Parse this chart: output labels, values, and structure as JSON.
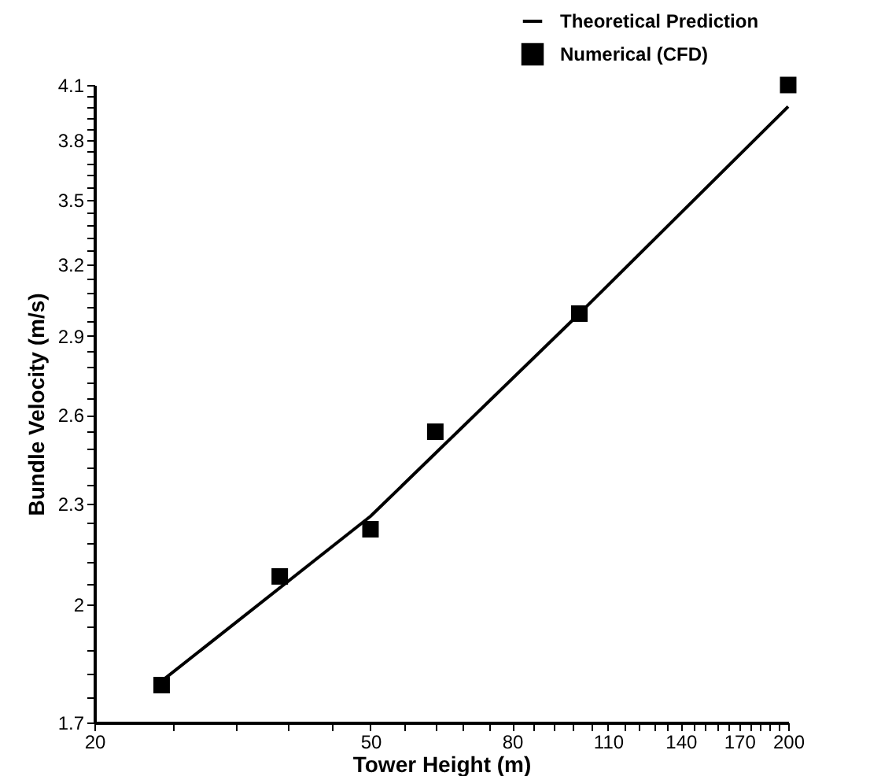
{
  "chart_data": {
    "type": "line",
    "xlabel": "Tower Height (m)",
    "ylabel": "Bundle Velocity (m/s)",
    "log": "xy",
    "legend": "top right",
    "grid": false,
    "xlim": [
      20,
      200
    ],
    "ylim": [
      1.7,
      4.1
    ],
    "xticks": [
      20,
      {
        "value": 26,
        "label": null
      },
      {
        "value": 32,
        "label": null
      },
      {
        "value": 38,
        "label": null
      },
      {
        "value": 44,
        "label": null
      },
      50,
      {
        "value": 56,
        "label": null
      },
      {
        "value": 62,
        "label": null
      },
      {
        "value": 68,
        "label": null
      },
      {
        "value": 74,
        "label": null
      },
      80,
      {
        "value": 86,
        "label": null
      },
      {
        "value": 92,
        "label": null
      },
      {
        "value": 98,
        "label": null
      },
      {
        "value": 104,
        "label": null
      },
      110,
      {
        "value": 116,
        "label": null
      },
      {
        "value": 122,
        "label": null
      },
      {
        "value": 128,
        "label": null
      },
      {
        "value": 134,
        "label": null
      },
      140,
      {
        "value": 146,
        "label": null
      },
      {
        "value": 152,
        "label": null
      },
      {
        "value": 158,
        "label": null
      },
      {
        "value": 164,
        "label": null
      },
      170,
      {
        "value": 176,
        "label": null
      },
      {
        "value": 182,
        "label": null
      },
      {
        "value": 188,
        "label": null
      },
      {
        "value": 194,
        "label": null
      },
      200
    ],
    "yticks": [
      1.7,
      {
        "value": 1.76,
        "label": null
      },
      {
        "value": 1.82,
        "label": null
      },
      {
        "value": 1.88,
        "label": null
      },
      {
        "value": 1.94,
        "label": null
      },
      {
        "value": 2,
        "label": "2"
      },
      {
        "value": 2.06,
        "label": null
      },
      {
        "value": 2.12,
        "label": null
      },
      {
        "value": 2.18,
        "label": null
      },
      {
        "value": 2.24,
        "label": null
      },
      2.3,
      {
        "value": 2.36,
        "label": null
      },
      {
        "value": 2.42,
        "label": null
      },
      {
        "value": 2.48,
        "label": null
      },
      {
        "value": 2.54,
        "label": null
      },
      2.6,
      {
        "value": 2.66,
        "label": null
      },
      {
        "value": 2.72,
        "label": null
      },
      {
        "value": 2.78,
        "label": null
      },
      {
        "value": 2.84,
        "label": null
      },
      2.9,
      {
        "value": 2.96,
        "label": null
      },
      {
        "value": 3.02,
        "label": null
      },
      {
        "value": 3.08,
        "label": null
      },
      {
        "value": 3.14,
        "label": null
      },
      3.2,
      {
        "value": 3.26,
        "label": null
      },
      {
        "value": 3.32,
        "label": null
      },
      {
        "value": 3.38,
        "label": null
      },
      {
        "value": 3.44,
        "label": null
      },
      3.5,
      {
        "value": 3.56,
        "label": null
      },
      {
        "value": 3.62,
        "label": null
      },
      {
        "value": 3.68,
        "label": null
      },
      {
        "value": 3.74,
        "label": null
      },
      3.8,
      {
        "value": 3.86,
        "label": null
      },
      {
        "value": 3.92,
        "label": null
      },
      {
        "value": 3.98,
        "label": null
      },
      {
        "value": 4.04,
        "label": null
      },
      4.1
    ],
    "series": [
      {
        "name": "Theoretical Prediction",
        "color": "#000000",
        "line_style": "solid",
        "marker": "none",
        "x": [
          25,
          50,
          100,
          200
        ],
        "values": [
          1.8,
          2.26,
          2.99,
          3.98
        ]
      },
      {
        "name": "Numerical (CFD)",
        "type": "scatter",
        "color": "#000000",
        "marker": "square",
        "x": [
          25,
          37,
          50,
          62,
          100,
          200
        ],
        "values": [
          1.79,
          2.08,
          2.22,
          2.54,
          2.99,
          4.1
        ]
      }
    ]
  }
}
